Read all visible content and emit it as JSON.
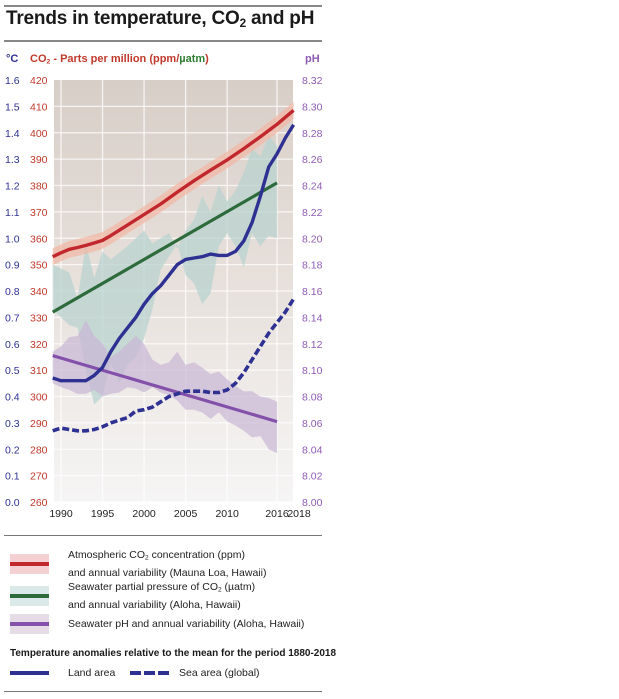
{
  "title": {
    "prefix": "Trends in temperature, CO",
    "sub": "2",
    "suffix": " and pH"
  },
  "axis_headers": {
    "celsius": "°C",
    "co2_prefix": "CO",
    "co2_sub": "2",
    "co2_mid": " - Parts per million (ppm/",
    "co2_uatm": "µatm",
    "co2_end": ")",
    "ph": "pH"
  },
  "colors": {
    "celsius_axis": "#2e3192",
    "ppm_axis": "#c0392b",
    "uatm_text": "#2e7d32",
    "ph_axis": "#8e5bb5",
    "co2_atm_line": "#c1272d",
    "co2_atm_band": "#f2b6a4",
    "pco2_line": "#2d6b3c",
    "pco2_band": "#b9d3cf",
    "ph_line": "#8350aa",
    "ph_band": "#c9b6d4",
    "land_temp": "#2e3192",
    "sea_temp": "#2e3192"
  },
  "chart_data": {
    "type": "line",
    "title": "Trends in temperature, CO2 and pH",
    "xlabel": "",
    "x_ticks": [
      1990,
      1995,
      2000,
      2005,
      2010,
      2016,
      2018
    ],
    "xlim": [
      1989,
      2018
    ],
    "grid": true,
    "axes": {
      "left_temperature": {
        "label": "°C",
        "ylim": [
          0.0,
          1.6
        ],
        "ticks": [
          "1.6",
          "1.5",
          "1.4",
          "1.3",
          "1.2",
          "1.1",
          "1.0",
          "0.9",
          "0.8",
          "0.7",
          "0.6",
          "0.5",
          "0.4",
          "0.3",
          "0.2",
          "0.1",
          "0.0"
        ]
      },
      "left_co2": {
        "label": "CO2 - Parts per million (ppm/µatm)",
        "ylim": [
          260,
          420
        ],
        "ticks": [
          "420",
          "410",
          "400",
          "390",
          "380",
          "370",
          "360",
          "350",
          "340",
          "330",
          "320",
          "310",
          "300",
          "290",
          "280",
          "270",
          "260"
        ]
      },
      "right_ph": {
        "label": "pH",
        "ylim": [
          8.0,
          8.32
        ],
        "ticks": [
          "8.32",
          "8.30",
          "8.28",
          "8.26",
          "8.24",
          "8.22",
          "8.20",
          "8.18",
          "8.16",
          "8.14",
          "8.12",
          "8.10",
          "8.08",
          "8.06",
          "8.04",
          "8.02",
          "8.00"
        ]
      }
    },
    "series": [
      {
        "name": "Atmospheric CO2 concentration (ppm)",
        "axis": "left_co2",
        "style": "solid",
        "x": [
          1989,
          1990,
          1991,
          1992,
          1993,
          1994,
          1995,
          1996,
          1998,
          2000,
          2002,
          2004,
          2006,
          2008,
          2010,
          2012,
          2014,
          2016,
          2018
        ],
        "y": [
          353,
          354.5,
          355.8,
          356.5,
          357.3,
          358.2,
          359.2,
          361,
          365,
          369,
          373,
          377.5,
          381.8,
          385.8,
          389.7,
          394,
          398.5,
          403.2,
          408.5
        ],
        "band_halfwidth": 3.2
      },
      {
        "name": "Seawater partial pressure of CO2 (µatm)",
        "axis": "left_co2",
        "style": "solid",
        "x": [
          1989,
          2016
        ],
        "y": [
          332,
          381
        ],
        "band_upper": [
          [
            1989,
            350
          ],
          [
            1991,
            347
          ],
          [
            1992,
            337
          ],
          [
            1993,
            358
          ],
          [
            1994,
            345
          ],
          [
            1995,
            355
          ],
          [
            1996,
            352
          ],
          [
            1998,
            357
          ],
          [
            2000,
            363
          ],
          [
            2001,
            358
          ],
          [
            2003,
            362
          ],
          [
            2004,
            356
          ],
          [
            2005,
            363
          ],
          [
            2006,
            367
          ],
          [
            2007,
            376
          ],
          [
            2008,
            370
          ],
          [
            2009,
            380
          ],
          [
            2010,
            374
          ],
          [
            2011,
            378
          ],
          [
            2012,
            385
          ],
          [
            2013,
            394
          ],
          [
            2014,
            391
          ],
          [
            2015,
            399
          ],
          [
            2016,
            395
          ]
        ],
        "band_lower": [
          [
            2016,
            360
          ],
          [
            2015,
            361
          ],
          [
            2014,
            357
          ],
          [
            2013,
            362
          ],
          [
            2012,
            349
          ],
          [
            2011,
            357
          ],
          [
            2010,
            362
          ],
          [
            2009,
            357
          ],
          [
            2008,
            339
          ],
          [
            2007,
            335
          ],
          [
            2006,
            343
          ],
          [
            2005,
            346
          ],
          [
            2004,
            358
          ],
          [
            2003,
            353
          ],
          [
            2002,
            348
          ],
          [
            2001,
            333
          ],
          [
            2000,
            322
          ],
          [
            1999,
            315
          ],
          [
            1998,
            312
          ],
          [
            1997,
            305
          ],
          [
            1996,
            313
          ],
          [
            1995,
            300
          ],
          [
            1994,
            297
          ],
          [
            1993,
            310
          ],
          [
            1992,
            326
          ],
          [
            1991,
            327
          ],
          [
            1990,
            330
          ],
          [
            1989,
            333
          ]
        ]
      },
      {
        "name": "Seawater pH and annual variability",
        "axis": "right_ph",
        "style": "solid",
        "x": [
          1989,
          2016
        ],
        "y": [
          8.111,
          8.061
        ],
        "band_upper": [
          [
            1989,
            8.114
          ],
          [
            1990,
            8.118
          ],
          [
            1991,
            8.125
          ],
          [
            1992,
            8.126
          ],
          [
            1993,
            8.138
          ],
          [
            1994,
            8.126
          ],
          [
            1995,
            8.12
          ],
          [
            1996,
            8.11
          ],
          [
            1997,
            8.114
          ],
          [
            1998,
            8.12
          ],
          [
            1999,
            8.126
          ],
          [
            2000,
            8.12
          ],
          [
            2001,
            8.108
          ],
          [
            2002,
            8.104
          ],
          [
            2003,
            8.106
          ],
          [
            2004,
            8.114
          ],
          [
            2005,
            8.104
          ],
          [
            2006,
            8.106
          ],
          [
            2007,
            8.102
          ],
          [
            2008,
            8.097
          ],
          [
            2009,
            8.099
          ],
          [
            2010,
            8.093
          ],
          [
            2011,
            8.088
          ],
          [
            2012,
            8.084
          ],
          [
            2013,
            8.084
          ],
          [
            2014,
            8.08
          ],
          [
            2015,
            8.079
          ],
          [
            2016,
            8.076
          ]
        ],
        "band_lower": [
          [
            2016,
            8.037
          ],
          [
            2015,
            8.04
          ],
          [
            2014,
            8.05
          ],
          [
            2013,
            8.049
          ],
          [
            2012,
            8.054
          ],
          [
            2011,
            8.058
          ],
          [
            2010,
            8.061
          ],
          [
            2009,
            8.068
          ],
          [
            2008,
            8.063
          ],
          [
            2007,
            8.068
          ],
          [
            2006,
            8.07
          ],
          [
            2005,
            8.07
          ],
          [
            2004,
            8.077
          ],
          [
            2003,
            8.081
          ],
          [
            2002,
            8.083
          ],
          [
            2001,
            8.087
          ],
          [
            2000,
            8.083
          ],
          [
            1999,
            8.086
          ],
          [
            1998,
            8.087
          ],
          [
            1997,
            8.083
          ],
          [
            1996,
            8.082
          ],
          [
            1995,
            8.08
          ],
          [
            1994,
            8.085
          ],
          [
            1993,
            8.082
          ],
          [
            1992,
            8.082
          ],
          [
            1991,
            8.085
          ],
          [
            1990,
            8.087
          ],
          [
            1989,
            8.09
          ]
        ]
      },
      {
        "name": "Land area temperature anomaly",
        "axis": "left_temperature",
        "style": "solid",
        "x": [
          1989,
          1990,
          1991,
          1992,
          1993,
          1994,
          1995,
          1996,
          1997,
          1998,
          1999,
          2000,
          2001,
          2002,
          2003,
          2004,
          2005,
          2006,
          2007,
          2008,
          2009,
          2010,
          2011,
          2012,
          2013,
          2014,
          2015,
          2016,
          2017,
          2018
        ],
        "y": [
          0.47,
          0.46,
          0.46,
          0.46,
          0.46,
          0.48,
          0.51,
          0.57,
          0.62,
          0.66,
          0.7,
          0.75,
          0.79,
          0.82,
          0.86,
          0.9,
          0.92,
          0.925,
          0.93,
          0.94,
          0.935,
          0.935,
          0.95,
          0.99,
          1.06,
          1.16,
          1.27,
          1.32,
          1.38,
          1.43
        ]
      },
      {
        "name": "Sea area (global) temperature anomaly",
        "axis": "left_temperature",
        "style": "dashed",
        "x": [
          1989,
          1990,
          1991,
          1992,
          1993,
          1994,
          1995,
          1996,
          1997,
          1998,
          1999,
          2000,
          2001,
          2002,
          2003,
          2004,
          2005,
          2006,
          2007,
          2008,
          2009,
          2010,
          2011,
          2012,
          2013,
          2014,
          2015,
          2016,
          2017,
          2018
        ],
        "y": [
          0.27,
          0.28,
          0.275,
          0.27,
          0.27,
          0.275,
          0.285,
          0.3,
          0.31,
          0.32,
          0.345,
          0.35,
          0.36,
          0.38,
          0.4,
          0.41,
          0.42,
          0.42,
          0.42,
          0.415,
          0.415,
          0.425,
          0.45,
          0.49,
          0.54,
          0.59,
          0.64,
          0.68,
          0.72,
          0.77
        ]
      }
    ],
    "background_gradient": {
      "top": "#d8cec8",
      "bottom": "#f5f5f5"
    }
  },
  "legend": {
    "items": [
      {
        "line1_prefix": "Atmospheric CO",
        "line1_sub": "2",
        "line1_suffix": " concentration (ppm)",
        "line2": "and annual variability (Mauna Loa, Hawaii)",
        "band": "#f4d0d2",
        "line": "#c1272d"
      },
      {
        "line1_prefix": "Seawater partial pressure of CO",
        "line1_sub": "2",
        "line1_suffix": " (µatm)",
        "line2": "and annual variability (Aloha, Hawaii)",
        "band": "#dbeae8",
        "line": "#2d6b3c"
      },
      {
        "line1_prefix": "Seawater pH and annual variability (Aloha, Hawaii)",
        "line1_sub": "",
        "line1_suffix": "",
        "line2": "",
        "band": "#e6dce8",
        "line": "#8350aa"
      }
    ],
    "temperature_heading": "Temperature anomalies relative to the mean for the period 1880-2018",
    "land_label": "Land area",
    "sea_label": "Sea area (global)"
  }
}
